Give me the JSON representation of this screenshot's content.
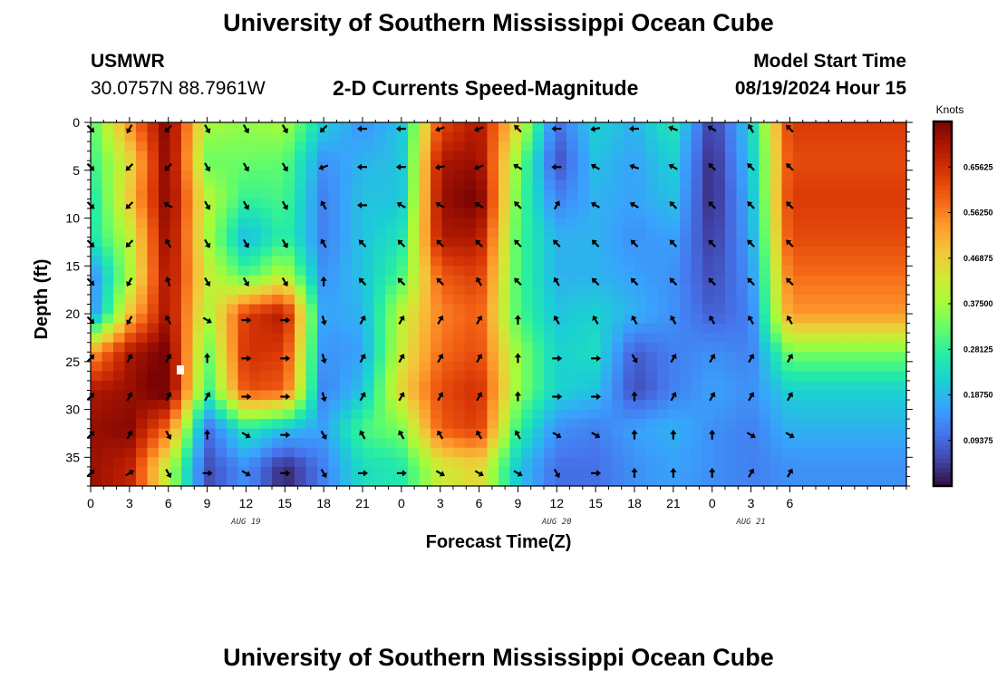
{
  "page": {
    "title": "University of Southern Mississippi Ocean Cube",
    "station": "USMWR",
    "coords": "30.0757N  88.7961W",
    "subtitle": "2-D Currents Speed-Magnitude",
    "model_label": "Model Start Time",
    "model_time": "08/19/2024 Hour 15",
    "footer_title": "University of Southern Mississippi Ocean Cube"
  },
  "colors": {
    "scale": [
      "#30123b",
      "#4145ab",
      "#4675ed",
      "#39a2fc",
      "#1bcfd4",
      "#24eca6",
      "#61fc6c",
      "#a4fc3b",
      "#d1e834",
      "#f3c63a",
      "#fe9b2d",
      "#f36315",
      "#d93806",
      "#b11901",
      "#7a0403"
    ],
    "missing": "#ffffff",
    "arrow": "#000000"
  },
  "chart_data": {
    "type": "heatmap",
    "title": "2-D Currents Speed-Magnitude",
    "xlabel": "Forecast Time(Z)",
    "ylabel": "Depth (ft)",
    "units": "Knots",
    "xlim": [
      0,
      63
    ],
    "ylim": [
      0,
      38
    ],
    "x_ticks": [
      0,
      3,
      6,
      9,
      12,
      15,
      18,
      21,
      24,
      27,
      30,
      33,
      36,
      39,
      42,
      45,
      48,
      51,
      54
    ],
    "x_tick_labels": [
      "0",
      "3",
      "6",
      "9",
      "12",
      "15",
      "18",
      "21",
      "0",
      "3",
      "6",
      "9",
      "12",
      "15",
      "18",
      "21",
      "0",
      "3",
      "6"
    ],
    "y_ticks": [
      0,
      5,
      10,
      15,
      20,
      25,
      30,
      35
    ],
    "y_tick_labels": [
      "0",
      "5",
      "10",
      "15",
      "20",
      "25",
      "30",
      "35"
    ],
    "date_labels": [
      {
        "text": "AUG 19",
        "at": 12
      },
      {
        "text": "AUG 20",
        "at": 36
      },
      {
        "text": "AUG 21",
        "at": 51
      }
    ],
    "colorbar": {
      "range": [
        0.0,
        0.75
      ],
      "ticks": [
        0.09375,
        0.1875,
        0.28125,
        0.375,
        0.46875,
        0.5625,
        0.65625
      ],
      "labels": [
        "0.09375",
        "0.18750",
        "0.28125",
        "0.37500",
        "0.46875",
        "0.56250",
        "0.65625"
      ]
    },
    "x_columns": [
      0,
      3,
      6,
      9,
      12,
      15,
      18,
      21,
      24,
      27,
      30,
      33,
      36,
      39,
      42,
      45,
      48,
      51,
      54
    ],
    "y_rows": [
      0,
      4,
      8,
      12,
      16,
      20,
      24,
      28,
      32,
      36
    ],
    "speed_grid": [
      [
        0.3,
        0.55,
        0.75,
        0.38,
        0.36,
        0.38,
        0.22,
        0.14,
        0.2,
        0.62,
        0.7,
        0.45,
        0.1,
        0.22,
        0.18,
        0.26,
        0.04,
        0.22,
        0.64
      ],
      [
        0.28,
        0.45,
        0.75,
        0.33,
        0.33,
        0.32,
        0.14,
        0.18,
        0.2,
        0.7,
        0.72,
        0.35,
        0.06,
        0.2,
        0.16,
        0.22,
        0.02,
        0.2,
        0.62
      ],
      [
        0.24,
        0.48,
        0.75,
        0.4,
        0.28,
        0.3,
        0.12,
        0.2,
        0.2,
        0.72,
        0.76,
        0.32,
        0.12,
        0.18,
        0.16,
        0.2,
        0.02,
        0.18,
        0.64
      ],
      [
        0.25,
        0.4,
        0.74,
        0.38,
        0.18,
        0.28,
        0.12,
        0.2,
        0.25,
        0.7,
        0.7,
        0.3,
        0.18,
        0.18,
        0.14,
        0.16,
        0.04,
        0.16,
        0.62
      ],
      [
        0.12,
        0.38,
        0.72,
        0.42,
        0.3,
        0.4,
        0.14,
        0.2,
        0.3,
        0.6,
        0.64,
        0.3,
        0.18,
        0.18,
        0.16,
        0.14,
        0.06,
        0.14,
        0.58
      ],
      [
        0.12,
        0.48,
        0.72,
        0.38,
        0.64,
        0.7,
        0.16,
        0.18,
        0.4,
        0.56,
        0.6,
        0.3,
        0.2,
        0.22,
        0.18,
        0.14,
        0.08,
        0.12,
        0.54
      ],
      [
        0.52,
        0.7,
        0.76,
        0.32,
        0.66,
        0.64,
        0.14,
        0.16,
        0.42,
        0.58,
        0.62,
        0.36,
        0.22,
        0.24,
        0.08,
        0.12,
        0.14,
        0.12,
        0.34
      ],
      [
        0.7,
        0.72,
        0.78,
        0.28,
        0.62,
        0.6,
        0.12,
        0.2,
        0.46,
        0.62,
        0.66,
        0.36,
        0.22,
        0.2,
        0.06,
        0.12,
        0.16,
        0.14,
        0.22
      ],
      [
        0.72,
        0.74,
        0.58,
        0.1,
        0.26,
        0.2,
        0.16,
        0.3,
        0.34,
        0.6,
        0.64,
        0.28,
        0.14,
        0.12,
        0.16,
        0.18,
        0.14,
        0.12,
        0.18
      ],
      [
        0.72,
        0.68,
        0.4,
        0.06,
        0.14,
        0.02,
        0.12,
        0.24,
        0.26,
        0.42,
        0.46,
        0.2,
        0.1,
        0.1,
        0.14,
        0.16,
        0.14,
        0.12,
        0.14
      ]
    ],
    "direction_deg": [
      [
        135,
        210,
        225,
        150,
        150,
        150,
        225,
        270,
        270,
        250,
        250,
        315,
        270,
        260,
        270,
        290,
        300,
        330,
        315
      ],
      [
        135,
        225,
        225,
        150,
        150,
        150,
        250,
        270,
        270,
        260,
        250,
        300,
        270,
        300,
        290,
        300,
        315,
        315,
        315
      ],
      [
        135,
        225,
        300,
        150,
        150,
        150,
        330,
        270,
        300,
        300,
        300,
        315,
        30,
        300,
        300,
        315,
        315,
        315,
        315
      ],
      [
        135,
        225,
        330,
        150,
        150,
        150,
        330,
        315,
        315,
        315,
        315,
        315,
        315,
        315,
        315,
        315,
        315,
        315,
        315
      ],
      [
        135,
        210,
        345,
        150,
        150,
        150,
        0,
        315,
        315,
        315,
        330,
        315,
        330,
        315,
        315,
        315,
        315,
        315,
        315
      ],
      [
        135,
        210,
        330,
        120,
        90,
        90,
        165,
        30,
        30,
        30,
        30,
        0,
        330,
        330,
        330,
        330,
        330,
        330,
        330
      ],
      [
        45,
        30,
        30,
        0,
        90,
        90,
        165,
        30,
        30,
        30,
        30,
        0,
        90,
        90,
        150,
        30,
        30,
        30,
        30
      ],
      [
        45,
        30,
        30,
        30,
        90,
        90,
        165,
        30,
        30,
        30,
        30,
        0,
        90,
        90,
        0,
        30,
        30,
        30,
        30
      ],
      [
        45,
        30,
        150,
        0,
        120,
        90,
        150,
        330,
        330,
        330,
        330,
        330,
        120,
        120,
        0,
        0,
        0,
        120,
        120
      ],
      [
        45,
        60,
        150,
        90,
        120,
        90,
        150,
        90,
        90,
        120,
        120,
        120,
        150,
        90,
        0,
        0,
        0,
        30,
        30
      ]
    ]
  }
}
